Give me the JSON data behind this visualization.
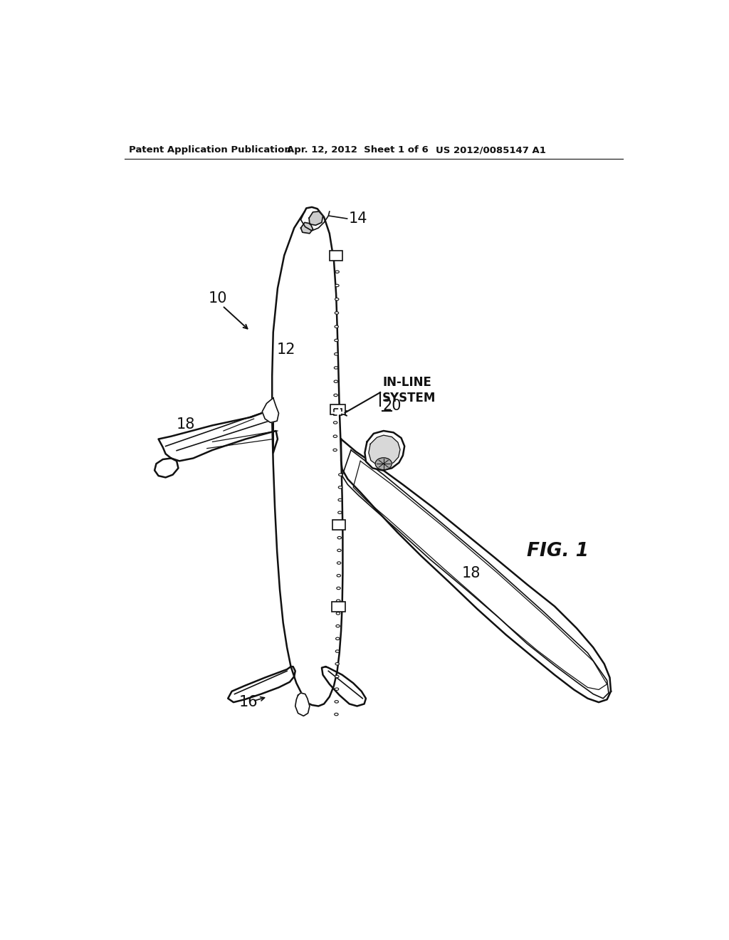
{
  "header_left": "Patent Application Publication",
  "header_center": "Apr. 12, 2012  Sheet 1 of 6",
  "header_right": "US 2012/0085147 A1",
  "fig_label": "FIG. 1",
  "label_10": "10",
  "label_12": "12",
  "label_14": "14",
  "label_16": "16",
  "label_18a": "18",
  "label_18b": "18",
  "label_20": "20",
  "inline_text": "IN-LINE\nSYSTEM",
  "background_color": "#ffffff",
  "line_color": "#111111"
}
